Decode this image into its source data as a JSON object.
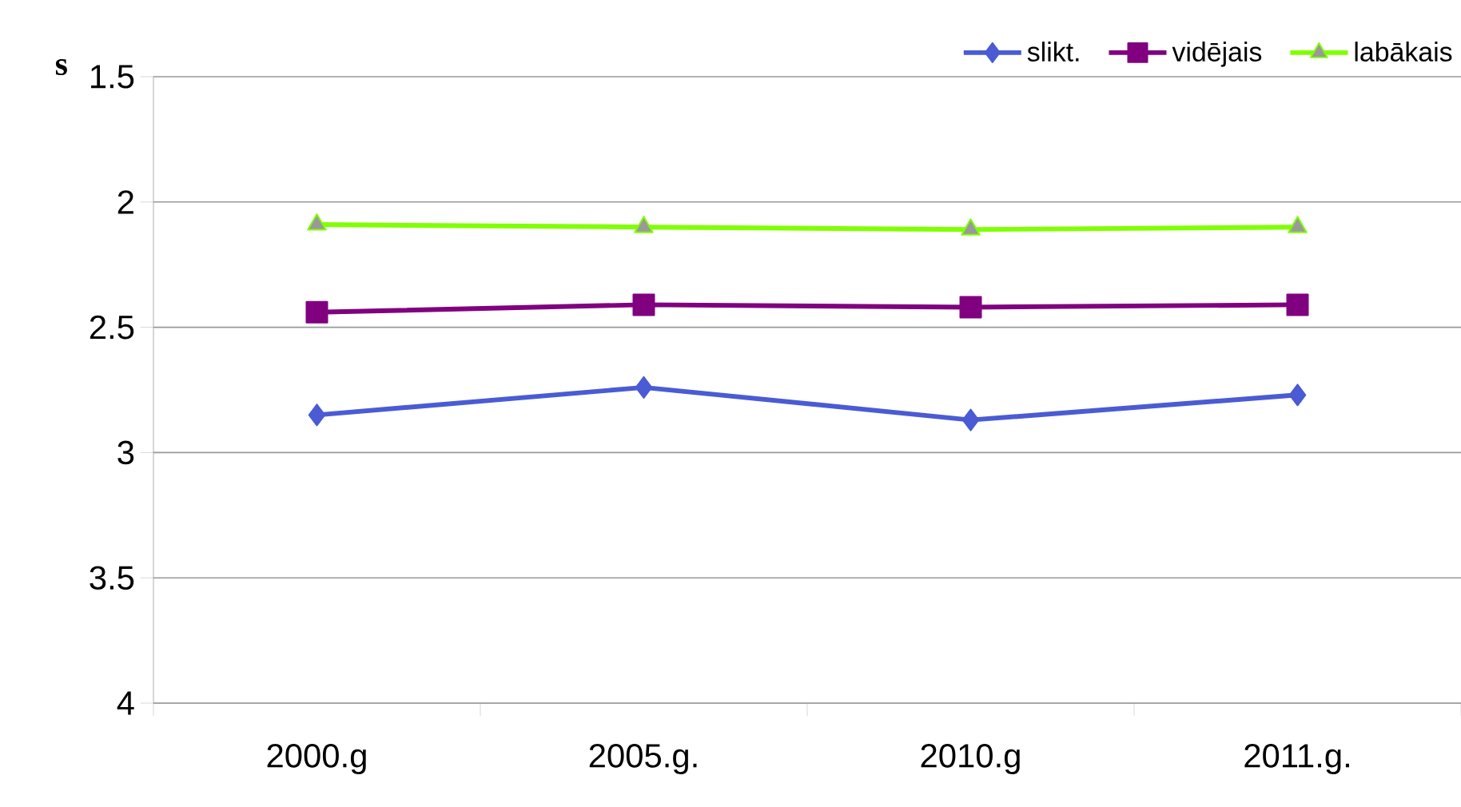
{
  "chart_data": {
    "type": "line",
    "ylabel": "s",
    "categories": [
      "2000.g",
      "2005.g.",
      "2010.g",
      "2011.g."
    ],
    "series": [
      {
        "name": "slikt.",
        "color": "#4a5bd4",
        "marker": "diamond",
        "values": [
          2.85,
          2.74,
          2.87,
          2.77
        ]
      },
      {
        "name": "vidējais",
        "color": "#800080",
        "marker": "square",
        "values": [
          2.44,
          2.41,
          2.42,
          2.41
        ]
      },
      {
        "name": "labākais",
        "color": "#80ff00",
        "marker": "triangle",
        "values": [
          2.09,
          2.1,
          2.11,
          2.1
        ]
      }
    ],
    "ylim": [
      4,
      1.5
    ],
    "yticks": [
      1.5,
      2,
      2.5,
      3,
      3.5,
      4
    ],
    "grid": "y",
    "legend": "top right"
  }
}
